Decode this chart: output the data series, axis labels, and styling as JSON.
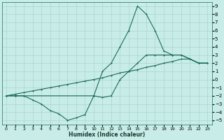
{
  "title": "",
  "xlabel": "Humidex (Indice chaleur)",
  "bg_color": "#c8ede8",
  "line_color": "#1a6b5a",
  "grid_color": "#aad4cc",
  "xlim": [
    -0.5,
    23.5
  ],
  "ylim": [
    -5.5,
    9.5
  ],
  "xticks": [
    0,
    1,
    2,
    3,
    4,
    5,
    6,
    7,
    8,
    9,
    10,
    11,
    12,
    13,
    14,
    15,
    16,
    17,
    18,
    19,
    20,
    21,
    22,
    23
  ],
  "yticks": [
    -5,
    -4,
    -3,
    -2,
    -1,
    0,
    1,
    2,
    3,
    4,
    5,
    6,
    7,
    8,
    9
  ],
  "line_jagged_x": [
    0,
    1,
    2,
    3,
    4,
    5,
    6,
    7,
    8,
    9,
    10,
    11,
    12,
    13,
    14,
    15,
    16,
    17,
    18,
    19,
    20,
    21,
    22,
    23
  ],
  "line_jagged_y": [
    -2,
    -2,
    -2,
    -2.5,
    -3,
    -3.8,
    -4.2,
    -5,
    -4.7,
    -4.3,
    -2,
    -2.2,
    -2,
    0,
    1,
    2,
    3,
    3,
    3,
    3,
    3,
    2.5,
    2,
    2
  ],
  "line_peak_x": [
    0,
    1,
    2,
    10,
    11,
    12,
    13,
    14,
    15,
    16,
    17,
    18,
    19,
    20,
    21,
    22,
    23
  ],
  "line_peak_y": [
    -2,
    -2,
    -2,
    -2,
    1,
    2,
    4,
    6,
    9,
    8,
    6,
    3.5,
    3,
    3,
    2.5,
    2,
    2
  ],
  "line_diag_x": [
    0,
    1,
    2,
    3,
    4,
    5,
    6,
    7,
    8,
    9,
    10,
    11,
    12,
    13,
    14,
    15,
    16,
    17,
    18,
    19,
    20,
    21,
    22,
    23
  ],
  "line_diag_y": [
    -2,
    -1.8,
    -1.6,
    -1.4,
    -1.2,
    -1.0,
    -0.8,
    -0.6,
    -0.4,
    -0.2,
    0,
    0.2,
    0.5,
    0.8,
    1.0,
    1.2,
    1.5,
    1.7,
    2.0,
    2.2,
    2.5,
    2.5,
    2.0,
    2.0
  ]
}
